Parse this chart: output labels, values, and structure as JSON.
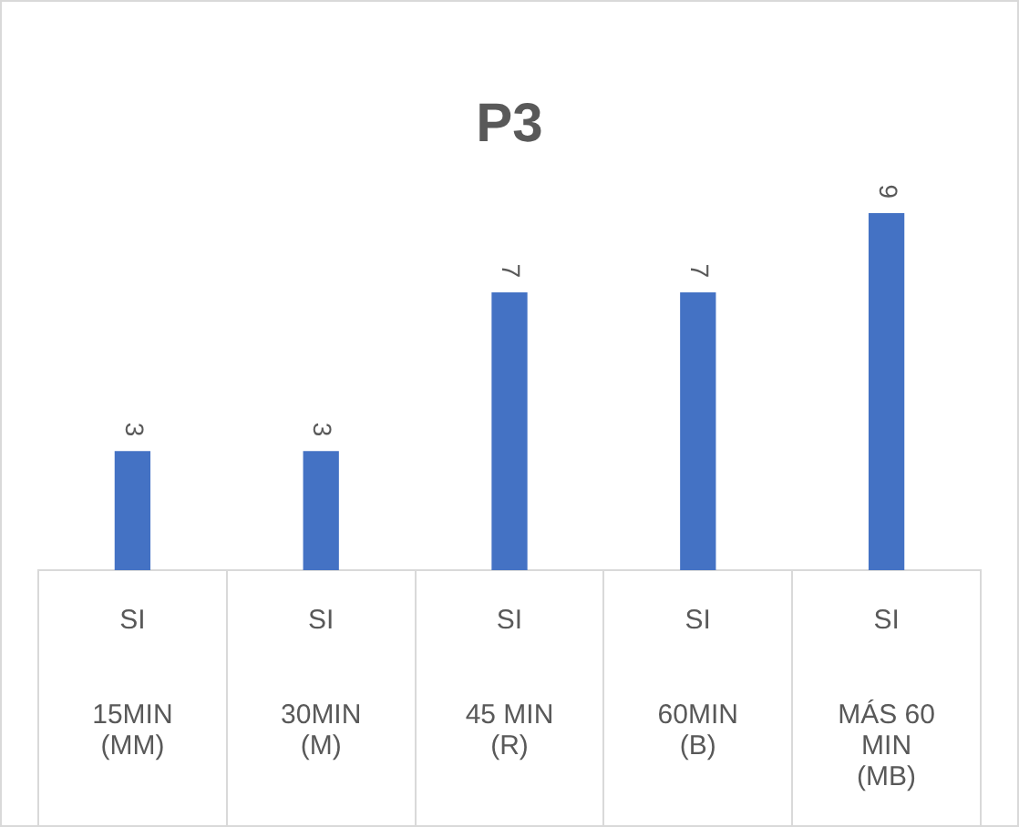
{
  "chart_data": {
    "type": "bar",
    "title": "P3",
    "categories": [
      "SI 15MIN (MM)",
      "SI 30MIN (M)",
      "SI 45 MIN (R)",
      "SI 60MIN (B)",
      "SI MÁS 60 MIN (MB)"
    ],
    "series": [
      {
        "color": "#4472c4",
        "values": [
          3,
          3,
          7,
          7,
          9
        ]
      }
    ],
    "data_labels": true,
    "grid": false,
    "legend": false
  }
}
